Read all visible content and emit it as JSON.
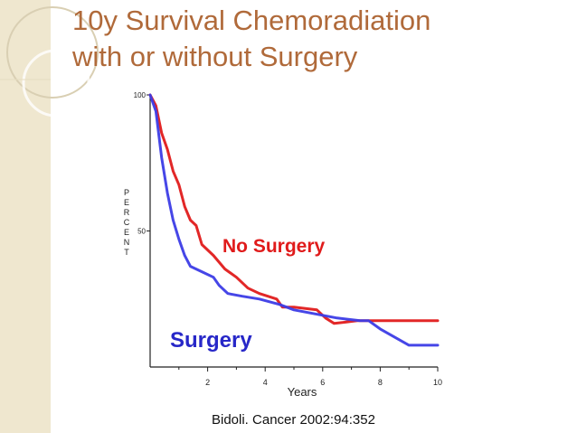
{
  "slide": {
    "title_line1": "10y Survival Chemoradiation",
    "title_line2": "with or without Surgery",
    "citation": "Bidoli. Cancer 2002:94:352",
    "title_color": "#b06a3a",
    "band_color": "#efe7cf"
  },
  "chart_data": {
    "type": "line",
    "title": "",
    "xlabel": "Years",
    "ylabel": "PERCENT",
    "xlim": [
      0,
      10
    ],
    "ylim": [
      0,
      100
    ],
    "x_ticks": [
      "2",
      "4",
      "6",
      "8",
      "10"
    ],
    "y_ticks": [
      "100",
      "50"
    ],
    "series": [
      {
        "name": "No Surgery",
        "color": "#e01b1b",
        "annotation": "No Surgery",
        "points": [
          [
            0,
            100
          ],
          [
            0.2,
            96
          ],
          [
            0.4,
            86
          ],
          [
            0.6,
            80
          ],
          [
            0.8,
            72
          ],
          [
            1.0,
            67
          ],
          [
            1.2,
            59
          ],
          [
            1.4,
            54
          ],
          [
            1.6,
            52
          ],
          [
            1.8,
            45
          ],
          [
            2.2,
            41
          ],
          [
            2.6,
            36
          ],
          [
            3.0,
            33
          ],
          [
            3.4,
            29
          ],
          [
            3.8,
            27
          ],
          [
            4.4,
            25
          ],
          [
            4.6,
            22
          ],
          [
            5.0,
            22
          ],
          [
            5.8,
            21
          ],
          [
            6.1,
            18
          ],
          [
            6.4,
            16
          ],
          [
            7.2,
            17
          ],
          [
            8.0,
            17
          ],
          [
            9.0,
            17
          ],
          [
            10.0,
            17
          ]
        ]
      },
      {
        "name": "Surgery",
        "color": "#3c3ce6",
        "annotation": "Surgery",
        "points": [
          [
            0,
            100
          ],
          [
            0.2,
            94
          ],
          [
            0.4,
            77
          ],
          [
            0.6,
            64
          ],
          [
            0.8,
            54
          ],
          [
            1.0,
            47
          ],
          [
            1.2,
            41
          ],
          [
            1.4,
            37
          ],
          [
            1.8,
            35
          ],
          [
            2.2,
            33
          ],
          [
            2.4,
            30
          ],
          [
            2.7,
            27
          ],
          [
            3.2,
            26
          ],
          [
            3.8,
            25
          ],
          [
            4.5,
            23
          ],
          [
            5.0,
            21
          ],
          [
            5.5,
            20
          ],
          [
            6.0,
            19
          ],
          [
            6.5,
            18
          ],
          [
            7.3,
            17
          ],
          [
            7.6,
            17
          ],
          [
            8.0,
            14
          ],
          [
            8.5,
            11
          ],
          [
            9.0,
            8
          ],
          [
            10.0,
            8
          ]
        ]
      }
    ]
  }
}
